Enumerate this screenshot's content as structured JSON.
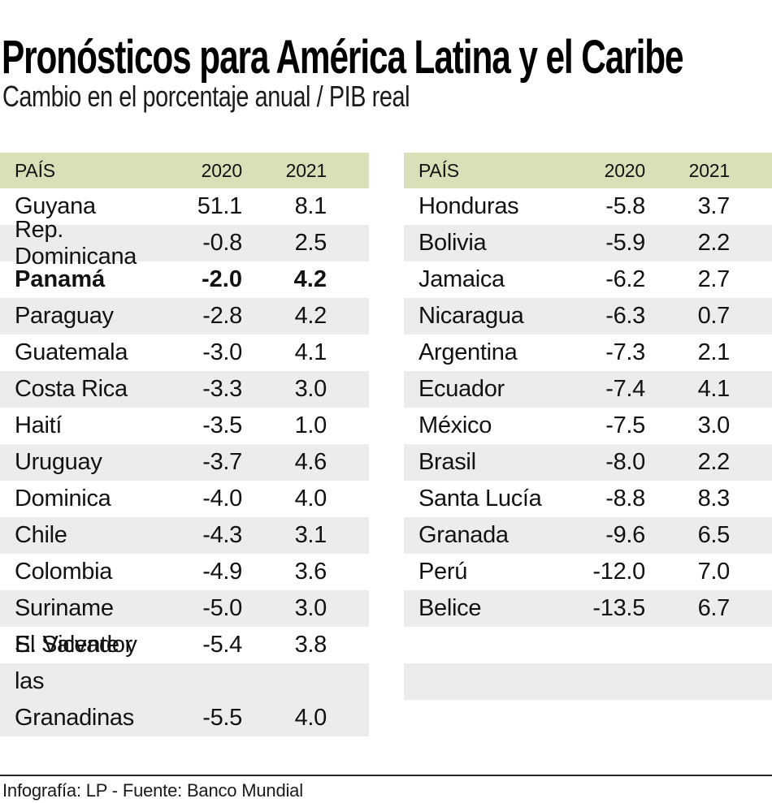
{
  "title": "Pronósticos para América Latina y el Caribe",
  "subtitle": "Cambio en el porcentaje anual / PIB real",
  "footer": "Infografía: LP - Fuente: Banco Mundial",
  "colors": {
    "header_bg": "#d9dfb7",
    "row_alt_bg": "#ebecec",
    "text": "#121212"
  },
  "chart_data": {
    "type": "table",
    "title": "Pronósticos para América Latina y el Caribe",
    "subtitle": "Cambio en el porcentaje anual / PIB real",
    "source": "Banco Mundial",
    "columns": [
      "PAÍS",
      "2020",
      "2021"
    ],
    "highlight_country": "Panamá",
    "left_table": {
      "rows": [
        {
          "country": "Guyana",
          "y2020": "51.1",
          "y2021": "8.1"
        },
        {
          "country": "Rep. Dominicana",
          "y2020": "-0.8",
          "y2021": "2.5"
        },
        {
          "country": "Panamá",
          "y2020": "-2.0",
          "y2021": "4.2"
        },
        {
          "country": "Paraguay",
          "y2020": "-2.8",
          "y2021": "4.2"
        },
        {
          "country": "Guatemala",
          "y2020": "-3.0",
          "y2021": "4.1"
        },
        {
          "country": "Costa Rica",
          "y2020": "-3.3",
          "y2021": "3.0"
        },
        {
          "country": "Haití",
          "y2020": "-3.5",
          "y2021": "1.0"
        },
        {
          "country": "Uruguay",
          "y2020": "-3.7",
          "y2021": "4.6"
        },
        {
          "country": "Dominica",
          "y2020": "-4.0",
          "y2021": "4.0"
        },
        {
          "country": "Chile",
          "y2020": "-4.3",
          "y2021": "3.1"
        },
        {
          "country": "Colombia",
          "y2020": "-4.9",
          "y2021": "3.6"
        },
        {
          "country": "Suriname",
          "y2020": "-5.0",
          "y2021": "3.0"
        },
        {
          "country": "El Salvador",
          "y2020": "-5.4",
          "y2021": "3.8"
        },
        {
          "country": "S. Vicente y\nlas Granadinas",
          "y2020": "-5.5",
          "y2021": "4.0"
        }
      ],
      "trailing_empty_rows": 0
    },
    "right_table": {
      "rows": [
        {
          "country": "Honduras",
          "y2020": "-5.8",
          "y2021": "3.7"
        },
        {
          "country": "Bolivia",
          "y2020": "-5.9",
          "y2021": "2.2"
        },
        {
          "country": "Jamaica",
          "y2020": "-6.2",
          "y2021": "2.7"
        },
        {
          "country": "Nicaragua",
          "y2020": "-6.3",
          "y2021": "0.7"
        },
        {
          "country": "Argentina",
          "y2020": "-7.3",
          "y2021": "2.1"
        },
        {
          "country": "Ecuador",
          "y2020": "-7.4",
          "y2021": "4.1"
        },
        {
          "country": "México",
          "y2020": "-7.5",
          "y2021": "3.0"
        },
        {
          "country": "Brasil",
          "y2020": "-8.0",
          "y2021": "2.2"
        },
        {
          "country": "Santa Lucía",
          "y2020": "-8.8",
          "y2021": "8.3"
        },
        {
          "country": "Granada",
          "y2020": "-9.6",
          "y2021": "6.5"
        },
        {
          "country": "Perú",
          "y2020": "-12.0",
          "y2021": "7.0"
        },
        {
          "country": "Belice",
          "y2020": "-13.5",
          "y2021": "6.7"
        }
      ],
      "trailing_empty_rows": 2
    }
  }
}
